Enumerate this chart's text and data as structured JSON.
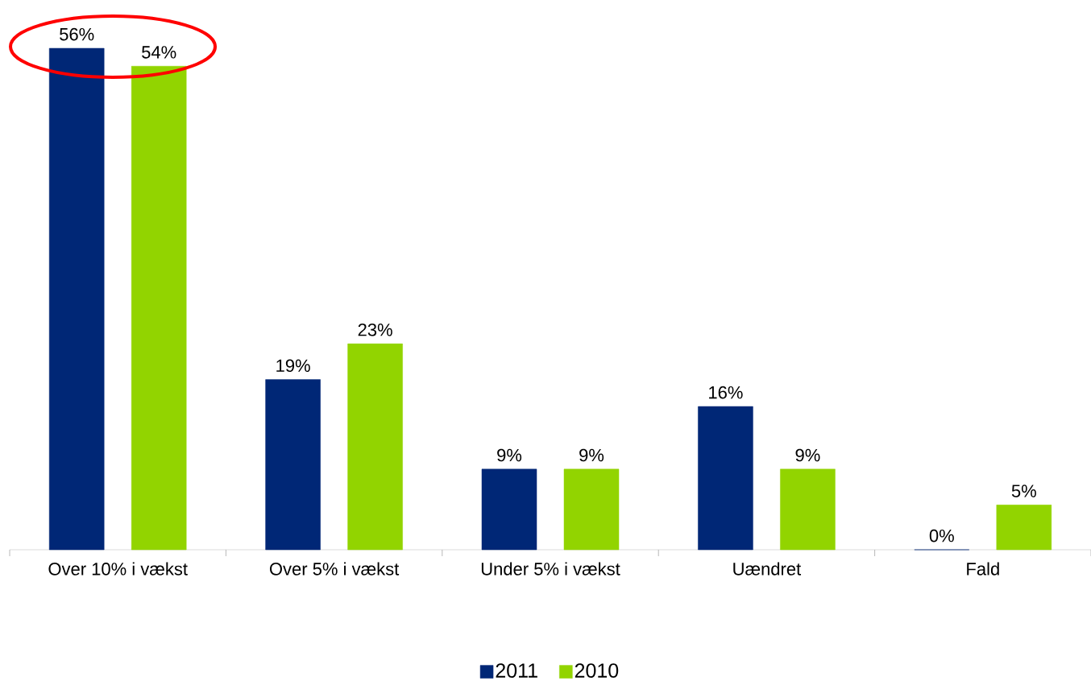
{
  "chart_data": {
    "type": "bar",
    "categories": [
      "Over 10% i vækst",
      "Over 5% i vækst",
      "Under 5% i vækst",
      "Uændret",
      "Fald"
    ],
    "series": [
      {
        "name": "2011",
        "color": "#002776",
        "values": [
          56,
          19,
          9,
          16,
          0
        ],
        "value_labels": [
          "56%",
          "19%",
          "9%",
          "16%",
          "0%"
        ]
      },
      {
        "name": "2010",
        "color": "#92d400",
        "values": [
          54,
          23,
          9,
          9,
          5
        ],
        "value_labels": [
          "54%",
          "23%",
          "9%",
          "9%",
          "5%"
        ]
      }
    ],
    "legend": "bottom"
  }
}
